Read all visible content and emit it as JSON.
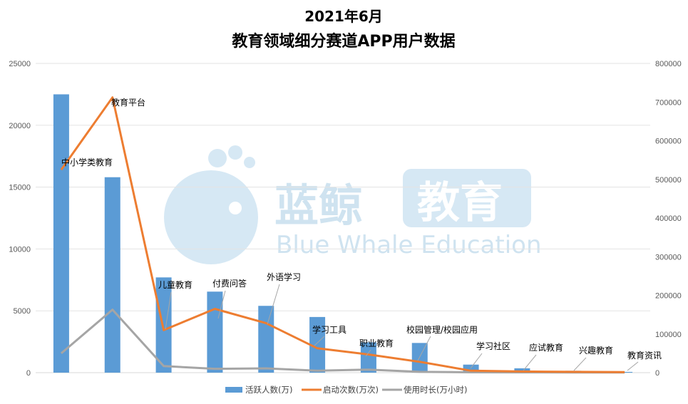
{
  "chart_data": {
    "type": "bar",
    "title_line1": "2021年6月",
    "title_line2": "教育领域细分赛道APP用户数据",
    "categories": [
      "中小学类教育",
      "教育平台",
      "儿童教育",
      "付费问答",
      "外语学习",
      "学习工具",
      "职业教育",
      "校园管理/校园应用",
      "学习社区",
      "应试教育",
      "兴趣教育",
      "教育资讯"
    ],
    "series": [
      {
        "name": "活跃人数(万)",
        "axis": "left",
        "kind": "bar",
        "color": "#5b9bd5",
        "values": [
          22500,
          15800,
          7700,
          6550,
          5400,
          4500,
          2450,
          2400,
          650,
          350,
          150,
          60
        ]
      },
      {
        "name": "启动次数(万次)",
        "axis": "right",
        "kind": "line",
        "color": "#ed7d31",
        "values": [
          525000,
          712000,
          110000,
          165000,
          128000,
          63000,
          47000,
          28000,
          5000,
          3000,
          2000,
          1500
        ]
      },
      {
        "name": "使用时长(万小时)",
        "axis": "right",
        "kind": "line",
        "color": "#a5a5a5",
        "values": [
          50000,
          163000,
          17000,
          10000,
          11000,
          5000,
          8000,
          2000,
          1000,
          700,
          500,
          400
        ]
      }
    ],
    "ylim_left": [
      0,
      25000
    ],
    "yticks_left": [
      "0",
      "5000",
      "10000",
      "15000",
      "20000",
      "25000"
    ],
    "ylim_right": [
      0,
      800000
    ],
    "yticks_right": [
      "0",
      "100000",
      "200000",
      "300000",
      "400000",
      "500000",
      "600000",
      "700000",
      "800000"
    ],
    "grid": true,
    "legend_position": "bottom"
  },
  "watermark": {
    "cn": "蓝鲸",
    "edu": "教育",
    "en": "Blue Whale Education"
  }
}
